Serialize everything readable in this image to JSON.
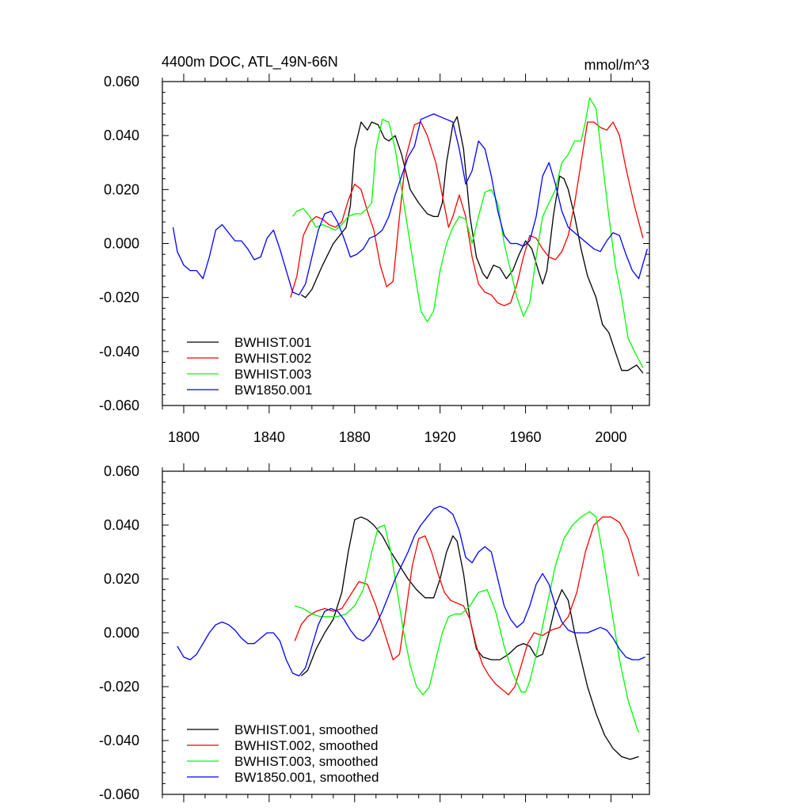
{
  "figure": {
    "title_left": "4400m DOC, ATL_49N-66N",
    "title_right": "mmol/m^3"
  },
  "colors": {
    "black": "#000000",
    "red": "#ff0000",
    "green": "#00ff00",
    "blue": "#0000ff"
  },
  "chart_data": [
    {
      "type": "line",
      "title": "4400m DOC, ATL_49N-66N",
      "units": "mmol/m^3",
      "xlim": [
        1790,
        2018
      ],
      "ylim": [
        -0.06,
        0.06
      ],
      "x_ticks": [
        1800,
        1840,
        1880,
        1920,
        1960,
        2000
      ],
      "x_tick_labels": [
        "1800",
        "1840",
        "1880",
        "1920",
        "1960",
        "2000"
      ],
      "y_ticks": [
        -0.06,
        -0.04,
        -0.02,
        0.0,
        0.02,
        0.04,
        0.06
      ],
      "y_tick_labels": [
        "-0.060",
        "-0.040",
        "-0.020",
        "0.000",
        "0.020",
        "0.040",
        "0.060"
      ],
      "legend_position": "bottom-left",
      "series": [
        {
          "name": "BWHIST.001",
          "color": "#000000",
          "x": [
            1855,
            1857,
            1860,
            1865,
            1870,
            1873,
            1876,
            1878,
            1880,
            1883,
            1886,
            1888,
            1891,
            1894,
            1896,
            1899,
            1902,
            1906,
            1910,
            1914,
            1917,
            1919,
            1921,
            1923,
            1926,
            1928,
            1931,
            1934,
            1937,
            1940,
            1942,
            1945,
            1948,
            1951,
            1954,
            1957,
            1960,
            1963,
            1966,
            1968,
            1970,
            1973,
            1976,
            1978,
            1980,
            1983,
            1986,
            1989,
            1993,
            1996,
            1999,
            2002,
            2005,
            2008,
            2012,
            2015
          ],
          "y": [
            -0.019,
            -0.02,
            -0.017,
            -0.008,
            0.0,
            0.003,
            0.006,
            0.014,
            0.035,
            0.045,
            0.042,
            0.045,
            0.044,
            0.039,
            0.038,
            0.04,
            0.033,
            0.02,
            0.015,
            0.011,
            0.01,
            0.01,
            0.015,
            0.03,
            0.044,
            0.047,
            0.035,
            0.01,
            -0.005,
            -0.011,
            -0.013,
            -0.008,
            -0.009,
            -0.013,
            -0.01,
            -0.004,
            0.001,
            -0.002,
            -0.01,
            -0.015,
            -0.01,
            0.01,
            0.025,
            0.024,
            0.02,
            0.01,
            -0.002,
            -0.012,
            -0.02,
            -0.03,
            -0.033,
            -0.04,
            -0.047,
            -0.047,
            -0.045,
            -0.048
          ]
        },
        {
          "name": "BWHIST.002",
          "color": "#ff0000",
          "x": [
            1850,
            1853,
            1856,
            1859,
            1862,
            1865,
            1868,
            1871,
            1874,
            1877,
            1880,
            1883,
            1886,
            1889,
            1892,
            1895,
            1898,
            1901,
            1904,
            1908,
            1911,
            1914,
            1918,
            1921,
            1924,
            1926,
            1929,
            1932,
            1935,
            1938,
            1941,
            1944,
            1947,
            1950,
            1953,
            1956,
            1959,
            1962,
            1965,
            1968,
            1971,
            1974,
            1977,
            1980,
            1983,
            1986,
            1989,
            1992,
            1995,
            1998,
            2001,
            2004,
            2007,
            2011,
            2015
          ],
          "y": [
            -0.02,
            -0.012,
            0.003,
            0.008,
            0.01,
            0.009,
            0.007,
            0.006,
            0.008,
            0.016,
            0.022,
            0.02,
            0.012,
            0.005,
            -0.008,
            -0.016,
            -0.014,
            0.01,
            0.032,
            0.044,
            0.045,
            0.04,
            0.03,
            0.018,
            0.006,
            0.01,
            0.018,
            0.01,
            -0.005,
            -0.015,
            -0.018,
            -0.019,
            -0.022,
            -0.023,
            -0.022,
            -0.015,
            -0.005,
            0.003,
            0.002,
            -0.002,
            -0.005,
            -0.006,
            -0.003,
            0.003,
            0.015,
            0.03,
            0.045,
            0.045,
            0.043,
            0.042,
            0.045,
            0.04,
            0.028,
            0.014,
            0.002
          ]
        },
        {
          "name": "BWHIST.003",
          "color": "#00ff00",
          "x": [
            1851,
            1853,
            1856,
            1859,
            1862,
            1865,
            1868,
            1871,
            1874,
            1877,
            1880,
            1883,
            1886,
            1888,
            1890,
            1893,
            1896,
            1899,
            1902,
            1905,
            1908,
            1911,
            1914,
            1917,
            1920,
            1923,
            1926,
            1929,
            1932,
            1935,
            1938,
            1941,
            1944,
            1947,
            1950,
            1953,
            1956,
            1959,
            1962,
            1965,
            1968,
            1971,
            1974,
            1977,
            1980,
            1983,
            1986,
            1988,
            1990,
            1993,
            1996,
            1999,
            2002,
            2005,
            2008,
            2011,
            2015
          ],
          "y": [
            0.01,
            0.012,
            0.013,
            0.01,
            0.006,
            0.007,
            0.006,
            0.005,
            0.007,
            0.01,
            0.011,
            0.011,
            0.013,
            0.015,
            0.035,
            0.046,
            0.045,
            0.035,
            0.02,
            0.005,
            -0.01,
            -0.025,
            -0.029,
            -0.025,
            -0.01,
            0.0,
            0.006,
            0.01,
            0.009,
            0.0,
            0.01,
            0.019,
            0.02,
            0.015,
            0.0,
            -0.01,
            -0.02,
            -0.027,
            -0.022,
            -0.005,
            0.01,
            0.015,
            0.02,
            0.03,
            0.033,
            0.038,
            0.038,
            0.045,
            0.054,
            0.05,
            0.03,
            0.01,
            -0.008,
            -0.02,
            -0.035,
            -0.04,
            -0.046
          ]
        },
        {
          "name": "BW1850.001",
          "color": "#0000ff",
          "x": [
            1795,
            1797,
            1800,
            1803,
            1806,
            1809,
            1812,
            1815,
            1818,
            1821,
            1824,
            1827,
            1830,
            1833,
            1836,
            1839,
            1842,
            1845,
            1848,
            1851,
            1854,
            1857,
            1860,
            1863,
            1866,
            1869,
            1872,
            1875,
            1878,
            1881,
            1884,
            1887,
            1890,
            1893,
            1896,
            1899,
            1902,
            1905,
            1908,
            1911,
            1914,
            1917,
            1920,
            1923,
            1926,
            1929,
            1932,
            1935,
            1938,
            1941,
            1944,
            1947,
            1950,
            1953,
            1956,
            1959,
            1962,
            1965,
            1968,
            1971,
            1974,
            1977,
            1980,
            1983,
            1986,
            1989,
            1992,
            1995,
            1998,
            2001,
            2004,
            2007,
            2010,
            2013,
            2017
          ],
          "y": [
            0.006,
            -0.003,
            -0.008,
            -0.01,
            -0.01,
            -0.013,
            -0.005,
            0.005,
            0.007,
            0.004,
            0.001,
            0.001,
            -0.002,
            -0.006,
            -0.005,
            0.002,
            0.005,
            -0.002,
            -0.01,
            -0.018,
            -0.019,
            -0.015,
            -0.005,
            0.005,
            0.011,
            0.012,
            0.008,
            0.002,
            -0.005,
            -0.004,
            -0.002,
            0.002,
            0.003,
            0.005,
            0.01,
            0.018,
            0.025,
            0.032,
            0.036,
            0.046,
            0.047,
            0.048,
            0.047,
            0.046,
            0.045,
            0.035,
            0.022,
            0.027,
            0.038,
            0.035,
            0.025,
            0.012,
            0.003,
            0.0,
            0.0,
            -0.001,
            0.001,
            0.01,
            0.025,
            0.03,
            0.022,
            0.012,
            0.006,
            0.004,
            0.002,
            0.0,
            -0.002,
            -0.003,
            0.001,
            0.004,
            0.003,
            -0.004,
            -0.01,
            -0.013,
            -0.002
          ]
        }
      ]
    },
    {
      "type": "line",
      "xlim": [
        1790,
        2018
      ],
      "ylim": [
        -0.06,
        0.06
      ],
      "x_ticks": [
        1800,
        1840,
        1880,
        1920,
        1960,
        2000
      ],
      "y_ticks": [
        -0.06,
        -0.04,
        -0.02,
        0.0,
        0.02,
        0.04,
        0.06
      ],
      "y_tick_labels": [
        "-0.060",
        "-0.040",
        "-0.020",
        "0.000",
        "0.020",
        "0.040",
        "0.060"
      ],
      "legend_position": "bottom-left",
      "series": [
        {
          "name": "BWHIST.001, smoothed",
          "color": "#000000",
          "x": [
            1855,
            1858,
            1862,
            1866,
            1870,
            1874,
            1877,
            1880,
            1883,
            1886,
            1889,
            1893,
            1897,
            1901,
            1905,
            1909,
            1913,
            1917,
            1920,
            1923,
            1926,
            1928,
            1931,
            1934,
            1937,
            1940,
            1944,
            1948,
            1952,
            1956,
            1959,
            1962,
            1965,
            1968,
            1971,
            1974,
            1977,
            1980,
            1983,
            1986,
            1989,
            1993,
            1997,
            2001,
            2005,
            2009,
            2013
          ],
          "y": [
            -0.016,
            -0.014,
            -0.006,
            0.0,
            0.005,
            0.015,
            0.03,
            0.042,
            0.043,
            0.042,
            0.04,
            0.036,
            0.03,
            0.025,
            0.02,
            0.016,
            0.013,
            0.013,
            0.02,
            0.03,
            0.036,
            0.034,
            0.022,
            0.005,
            -0.006,
            -0.009,
            -0.01,
            -0.01,
            -0.008,
            -0.005,
            -0.004,
            -0.005,
            -0.009,
            -0.008,
            0.0,
            0.01,
            0.016,
            0.012,
            0.0,
            -0.01,
            -0.02,
            -0.03,
            -0.038,
            -0.043,
            -0.046,
            -0.047,
            -0.046
          ]
        },
        {
          "name": "BWHIST.002, smoothed",
          "color": "#ff0000",
          "x": [
            1852,
            1855,
            1858,
            1862,
            1866,
            1870,
            1874,
            1878,
            1882,
            1886,
            1890,
            1894,
            1898,
            1901,
            1904,
            1907,
            1910,
            1913,
            1916,
            1919,
            1922,
            1925,
            1928,
            1931,
            1934,
            1937,
            1940,
            1943,
            1946,
            1949,
            1952,
            1955,
            1958,
            1961,
            1964,
            1968,
            1972,
            1976,
            1980,
            1984,
            1988,
            1992,
            1996,
            2000,
            2004,
            2008,
            2013
          ],
          "y": [
            -0.003,
            0.003,
            0.006,
            0.008,
            0.009,
            0.008,
            0.009,
            0.014,
            0.019,
            0.018,
            0.01,
            0.0,
            -0.01,
            -0.008,
            0.008,
            0.025,
            0.035,
            0.036,
            0.03,
            0.022,
            0.015,
            0.012,
            0.011,
            0.01,
            0.005,
            -0.005,
            -0.012,
            -0.016,
            -0.019,
            -0.021,
            -0.023,
            -0.02,
            -0.012,
            -0.004,
            0.0,
            -0.001,
            0.001,
            0.002,
            0.006,
            0.015,
            0.03,
            0.04,
            0.043,
            0.043,
            0.041,
            0.035,
            0.021
          ]
        },
        {
          "name": "BWHIST.003, smoothed",
          "color": "#00ff00",
          "x": [
            1852,
            1856,
            1860,
            1864,
            1868,
            1872,
            1876,
            1880,
            1884,
            1888,
            1891,
            1894,
            1897,
            1900,
            1903,
            1906,
            1909,
            1912,
            1915,
            1918,
            1921,
            1924,
            1927,
            1930,
            1934,
            1938,
            1942,
            1946,
            1950,
            1954,
            1958,
            1960,
            1962,
            1966,
            1970,
            1974,
            1978,
            1982,
            1986,
            1990,
            1993,
            1996,
            2000,
            2004,
            2008,
            2012,
            2013
          ],
          "y": [
            0.01,
            0.009,
            0.007,
            0.006,
            0.006,
            0.006,
            0.007,
            0.01,
            0.016,
            0.03,
            0.039,
            0.04,
            0.03,
            0.015,
            0.0,
            -0.012,
            -0.02,
            -0.023,
            -0.02,
            -0.01,
            0.0,
            0.006,
            0.007,
            0.007,
            0.01,
            0.015,
            0.016,
            0.008,
            -0.005,
            -0.015,
            -0.022,
            -0.022,
            -0.018,
            -0.005,
            0.01,
            0.025,
            0.035,
            0.04,
            0.043,
            0.045,
            0.043,
            0.03,
            0.01,
            -0.01,
            -0.025,
            -0.035,
            -0.037
          ]
        },
        {
          "name": "BW1850.001, smoothed",
          "color": "#0000ff",
          "x": [
            1797,
            1800,
            1803,
            1806,
            1809,
            1812,
            1815,
            1818,
            1821,
            1824,
            1827,
            1830,
            1833,
            1836,
            1839,
            1842,
            1845,
            1848,
            1851,
            1854,
            1857,
            1860,
            1863,
            1866,
            1869,
            1872,
            1875,
            1878,
            1881,
            1884,
            1887,
            1890,
            1893,
            1896,
            1899,
            1902,
            1905,
            1908,
            1911,
            1914,
            1917,
            1920,
            1923,
            1926,
            1929,
            1932,
            1935,
            1938,
            1941,
            1944,
            1947,
            1950,
            1953,
            1956,
            1959,
            1962,
            1965,
            1968,
            1971,
            1974,
            1977,
            1980,
            1983,
            1986,
            1989,
            1992,
            1995,
            1998,
            2001,
            2004,
            2007,
            2010,
            2013,
            2016
          ],
          "y": [
            -0.005,
            -0.009,
            -0.01,
            -0.008,
            -0.004,
            0.0,
            0.003,
            0.004,
            0.003,
            0.001,
            -0.002,
            -0.004,
            -0.004,
            -0.002,
            0.0,
            0.0,
            -0.003,
            -0.01,
            -0.015,
            -0.016,
            -0.013,
            -0.005,
            0.003,
            0.008,
            0.009,
            0.008,
            0.005,
            0.001,
            -0.002,
            -0.003,
            -0.001,
            0.003,
            0.008,
            0.014,
            0.02,
            0.025,
            0.03,
            0.036,
            0.04,
            0.043,
            0.046,
            0.047,
            0.046,
            0.044,
            0.038,
            0.028,
            0.026,
            0.03,
            0.032,
            0.03,
            0.02,
            0.01,
            0.005,
            0.002,
            0.004,
            0.01,
            0.018,
            0.022,
            0.018,
            0.01,
            0.004,
            0.001,
            0.0,
            0.0,
            0.0,
            0.001,
            0.002,
            0.001,
            -0.002,
            -0.006,
            -0.009,
            -0.01,
            -0.01,
            -0.009
          ]
        }
      ]
    }
  ]
}
